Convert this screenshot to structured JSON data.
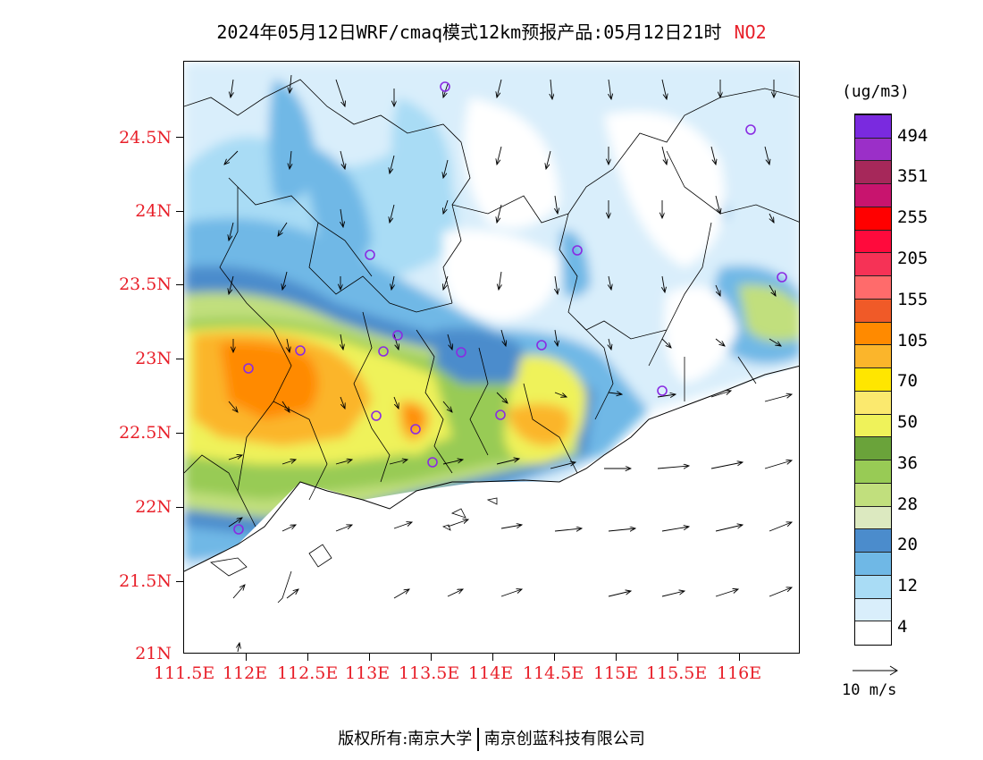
{
  "title": {
    "main": "2024年05月12日WRF/cmaq模式12km预报产品:05月12日21时",
    "pollutant": "NO2"
  },
  "axes": {
    "lat_labels": [
      "24.5N",
      "24N",
      "23.5N",
      "23N",
      "22.5N",
      "22N",
      "21.5N",
      "21N"
    ],
    "lon_labels": [
      "111.5E",
      "112E",
      "112.5E",
      "113E",
      "113.5E",
      "114E",
      "114.5E",
      "115E",
      "115.5E",
      "116E"
    ]
  },
  "colorbar": {
    "unit": "(ug/m3)",
    "colors": [
      "#ffffff",
      "#d9eefb",
      "#a9dcf5",
      "#6fb8e6",
      "#4b8ccc",
      "#dce9c0",
      "#c1df7d",
      "#98cb55",
      "#6aa33a",
      "#eff25a",
      "#fbe96e",
      "#ffe600",
      "#fbb52b",
      "#ff8a00",
      "#f05a28",
      "#ff6b6b",
      "#f63256",
      "#ff0a3c",
      "#ff0000",
      "#c8146e",
      "#a6285a",
      "#9b2fc8",
      "#7a2adf"
    ],
    "labels": [
      "494",
      "351",
      "255",
      "205",
      "155",
      "105",
      "70",
      "50",
      "36",
      "28",
      "20",
      "12",
      "4"
    ]
  },
  "wind_reference": "10 m/s",
  "footer": {
    "left": "版权所有:南京大学",
    "right": "南京创蓝科技有限公司"
  }
}
